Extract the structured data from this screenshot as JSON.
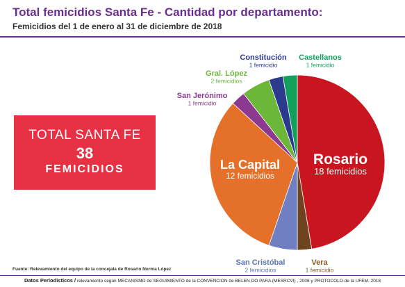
{
  "header": {
    "title": "Total femicidios Santa Fe - Cantidad por departamento:",
    "subtitle": "Femicidios  del 1 de enero al 31 de diciembre de 2018"
  },
  "total": {
    "label": "TOTAL SANTA FE",
    "number": "38",
    "unit": "FEMICIDIOS"
  },
  "footer": {
    "fuente": "Fuente: Relevamiento del equipo de la concejala de Rosario Norma López",
    "datos_strong": "Datos Periodisticos /",
    "datos_rest": " relevamiento según MECANISMO de SEGUIMIENTO de la CONVENCION de BELEN DO PARA (MESRCVI) , 2008 y PROTOCOLO de la UFEM, 2018"
  },
  "colors": {
    "title": "#6b2d8f",
    "total_box": "#e63144"
  },
  "chart_data": {
    "type": "pie",
    "title": "",
    "total": 38,
    "slices": [
      {
        "name": "Rosario",
        "value": 18,
        "value_label": "18 femicidios",
        "color": "#c8151f",
        "label_color": "#ffffff"
      },
      {
        "name": "Vera",
        "value": 1,
        "value_label": "1 femicidio",
        "color": "#6e4420",
        "label_color": "#8a5a22"
      },
      {
        "name": "San Cristóbal",
        "value": 2,
        "value_label": "2 femicidios",
        "color": "#6f7fc2",
        "label_color": "#5a74b5"
      },
      {
        "name": "La Capital",
        "value": 12,
        "value_label": "12 femicidios",
        "color": "#e5702a",
        "label_color": "#ffffff"
      },
      {
        "name": "San Jerónimo",
        "value": 1,
        "value_label": "1 femicidio",
        "color": "#8b3a8f",
        "label_color": "#8b3a8f"
      },
      {
        "name": "Gral. López",
        "value": 2,
        "value_label": "2 femicidios",
        "color": "#6cb63a",
        "label_color": "#6cb63a"
      },
      {
        "name": "Constitución",
        "value": 1,
        "value_label": "1 femicidio",
        "color": "#2b3a8c",
        "label_color": "#2b3a8c"
      },
      {
        "name": "Castellanos",
        "value": 1,
        "value_label": "1 femicidio",
        "color": "#13a05c",
        "label_color": "#13a05c"
      }
    ]
  }
}
